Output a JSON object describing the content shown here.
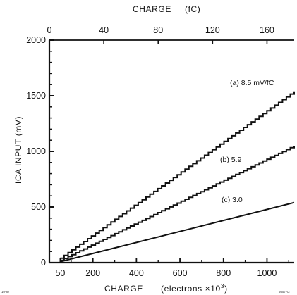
{
  "chart_data": {
    "type": "line",
    "title": "",
    "x_top": {
      "title_name": "CHARGE",
      "title_unit": "(fC)",
      "ticks": [
        0,
        40,
        80,
        120,
        160
      ],
      "tick_labels": [
        "0",
        "40",
        "80",
        "120",
        "160"
      ],
      "range": [
        0,
        180
      ]
    },
    "x_bottom": {
      "title_name": "CHARGE",
      "title_unit_prefix": "(electrons ×10",
      "title_unit_exp": "3",
      "title_unit_suffix": ")",
      "ticks": [
        50,
        200,
        400,
        600,
        800,
        1000
      ],
      "tick_labels": [
        "50",
        "200",
        "400",
        "600",
        "800",
        "1000"
      ],
      "range": [
        0,
        1125
      ]
    },
    "y_axis": {
      "title": "ICA INPUT  (mV)",
      "ticks": [
        0,
        500,
        1000,
        1500,
        2000
      ],
      "tick_labels": [
        "0",
        "500",
        "1000",
        "1500",
        "2000"
      ],
      "range": [
        0,
        2000
      ]
    },
    "series": [
      {
        "name": "(a) 8.5 mV/fC",
        "style": "staircase",
        "x": [
          50,
          1125
        ],
        "y": [
          40,
          1540
        ]
      },
      {
        "name": "(b) 5.9",
        "style": "staircase",
        "x": [
          50,
          1125
        ],
        "y": [
          20,
          1050
        ]
      },
      {
        "name": "(c) 3.0",
        "style": "line",
        "x": [
          50,
          1125
        ],
        "y": [
          8,
          540
        ]
      }
    ],
    "grid": false,
    "legend": "inline labels near line ends",
    "colors": {
      "ink": "#111111",
      "background": "#ffffff"
    }
  },
  "corner_marks": {
    "left": "10-87",
    "right": "5657A3"
  }
}
